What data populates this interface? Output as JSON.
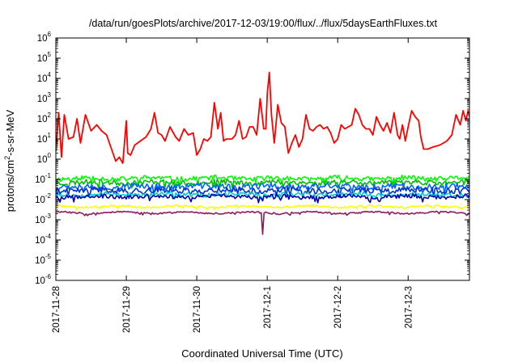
{
  "chart_data": {
    "type": "line",
    "title": "/data/run/goesPlots/archive/2017-12-03/19:00/flux/../flux/5daysEarthFluxes.txt",
    "xlabel": "Coordinated Universal Time (UTC)",
    "ylabel": {
      "base": "protons/cm",
      "sup": "2",
      "rest": "-s-sr-MeV"
    },
    "x_ticks": [
      "2017-11-28",
      "2017-11-29",
      "2017-11-30",
      "2017-12-1",
      "2017-12-2",
      "2017-12-3"
    ],
    "x_range_days": [
      0,
      5.87
    ],
    "y_scale": "log",
    "ylim": [
      1e-06,
      1000000.0
    ],
    "y_ticks": [
      {
        "base": "10",
        "exp": "6"
      },
      {
        "base": "10",
        "exp": "5"
      },
      {
        "base": "10",
        "exp": "4"
      },
      {
        "base": "10",
        "exp": "3"
      },
      {
        "base": "10",
        "exp": "2"
      },
      {
        "base": "10",
        "exp": "1"
      },
      {
        "base": "10",
        "exp": "0"
      },
      {
        "base": "10",
        "exp": "-1"
      },
      {
        "base": "10",
        "exp": "-2"
      },
      {
        "base": "10",
        "exp": "-3"
      },
      {
        "base": "10",
        "exp": "-4"
      },
      {
        "base": "10",
        "exp": "-5"
      },
      {
        "base": "10",
        "exp": "-6"
      }
    ],
    "grid": false,
    "legend": "none",
    "series": [
      {
        "color": "#ff0000",
        "log10_points": [
          [
            0,
            0.4
          ],
          [
            0.04,
            2.3
          ],
          [
            0.08,
            0.1
          ],
          [
            0.12,
            2.2
          ],
          [
            0.18,
            1.0
          ],
          [
            0.25,
            1.1
          ],
          [
            0.3,
            2.0
          ],
          [
            0.35,
            0.8
          ],
          [
            0.42,
            2.2
          ],
          [
            0.5,
            1.4
          ],
          [
            0.58,
            1.7
          ],
          [
            0.65,
            1.4
          ],
          [
            0.72,
            1.2
          ],
          [
            0.78,
            0.6
          ],
          [
            0.85,
            -0.1
          ],
          [
            0.9,
            0.1
          ],
          [
            0.95,
            -0.2
          ],
          [
            1.0,
            1.9
          ],
          [
            1.02,
            0.3
          ],
          [
            1.06,
            0.2
          ],
          [
            1.12,
            0.7
          ],
          [
            1.2,
            0.9
          ],
          [
            1.28,
            1.1
          ],
          [
            1.35,
            1.5
          ],
          [
            1.4,
            2.3
          ],
          [
            1.45,
            1.3
          ],
          [
            1.5,
            1.2
          ],
          [
            1.55,
            0.9
          ],
          [
            1.62,
            1.6
          ],
          [
            1.7,
            1.1
          ],
          [
            1.75,
            0.9
          ],
          [
            1.82,
            1.5
          ],
          [
            1.88,
            1.2
          ],
          [
            1.95,
            1.3
          ],
          [
            2.0,
            0.2
          ],
          [
            2.05,
            0.5
          ],
          [
            2.1,
            1.0
          ],
          [
            2.15,
            0.9
          ],
          [
            2.2,
            1.1
          ],
          [
            2.25,
            2.8
          ],
          [
            2.3,
            1.5
          ],
          [
            2.34,
            2.3
          ],
          [
            2.38,
            0.9
          ],
          [
            2.42,
            1.0
          ],
          [
            2.5,
            1.0
          ],
          [
            2.55,
            1.2
          ],
          [
            2.6,
            1.9
          ],
          [
            2.65,
            1.0
          ],
          [
            2.7,
            1.1
          ],
          [
            2.75,
            1.6
          ],
          [
            2.8,
            1.6
          ],
          [
            2.85,
            1.2
          ],
          [
            2.9,
            3.0
          ],
          [
            2.95,
            1.5
          ],
          [
            2.98,
            1.5
          ],
          [
            3.0,
            3.2
          ],
          [
            3.03,
            4.3
          ],
          [
            3.06,
            2.2
          ],
          [
            3.1,
            0.8
          ],
          [
            3.15,
            2.7
          ],
          [
            3.2,
            1.8
          ],
          [
            3.25,
            1.6
          ],
          [
            3.3,
            0.3
          ],
          [
            3.35,
            0.8
          ],
          [
            3.4,
            1.2
          ],
          [
            3.45,
            0.6
          ],
          [
            3.5,
            1.0
          ],
          [
            3.55,
            2.2
          ],
          [
            3.6,
            1.5
          ],
          [
            3.65,
            1.4
          ],
          [
            3.7,
            1.6
          ],
          [
            3.75,
            1.7
          ],
          [
            3.8,
            1.5
          ],
          [
            3.85,
            1.6
          ],
          [
            3.9,
            1.3
          ],
          [
            3.95,
            0.8
          ],
          [
            4.0,
            1.0
          ],
          [
            4.05,
            1.7
          ],
          [
            4.1,
            1.5
          ],
          [
            4.15,
            1.6
          ],
          [
            4.2,
            1.7
          ],
          [
            4.25,
            2.5
          ],
          [
            4.3,
            2.2
          ],
          [
            4.35,
            1.7
          ],
          [
            4.4,
            1.5
          ],
          [
            4.45,
            1.5
          ],
          [
            4.5,
            1.2
          ],
          [
            4.55,
            2.1
          ],
          [
            4.6,
            1.7
          ],
          [
            4.65,
            1.4
          ],
          [
            4.7,
            1.8
          ],
          [
            4.75,
            1.3
          ],
          [
            4.8,
            2.3
          ],
          [
            4.85,
            1.2
          ],
          [
            4.88,
            1.0
          ],
          [
            4.92,
            1.7
          ],
          [
            4.96,
            0.9
          ],
          [
            5.0,
            1.6
          ],
          [
            5.05,
            2.4
          ],
          [
            5.1,
            2.1
          ],
          [
            5.15,
            1.9
          ],
          [
            5.18,
            1.1
          ],
          [
            5.22,
            0.5
          ],
          [
            5.28,
            0.5
          ],
          [
            5.35,
            0.6
          ],
          [
            5.45,
            0.7
          ],
          [
            5.55,
            0.9
          ],
          [
            5.62,
            1.2
          ],
          [
            5.68,
            2.2
          ],
          [
            5.74,
            1.7
          ],
          [
            5.78,
            2.4
          ],
          [
            5.82,
            1.9
          ],
          [
            5.85,
            2.4
          ],
          [
            5.87,
            2.1
          ]
        ]
      },
      {
        "color": "#00ff00",
        "base": -0.95,
        "amp": 0.12,
        "seed": 11
      },
      {
        "color": "#00c000",
        "base": -1.15,
        "amp": 0.12,
        "seed": 23
      },
      {
        "color": "#0066ff",
        "base": -1.35,
        "amp": 0.15,
        "seed": 37
      },
      {
        "color": "#0033cc",
        "base": -1.55,
        "amp": 0.15,
        "seed": 41
      },
      {
        "color": "#00cccc",
        "base": -1.75,
        "amp": 0.1,
        "seed": 53
      },
      {
        "color": "#0000b0",
        "base": -1.85,
        "amp": 0.1,
        "seed": 67
      },
      {
        "color": "#ffff00",
        "base": -2.35,
        "amp": 0.05,
        "seed": 71
      },
      {
        "color": "#8b1a5a",
        "base": -2.65,
        "amp": 0.04,
        "seed": 83,
        "dip_day": 2.93,
        "dip_value": -3.72
      }
    ]
  }
}
